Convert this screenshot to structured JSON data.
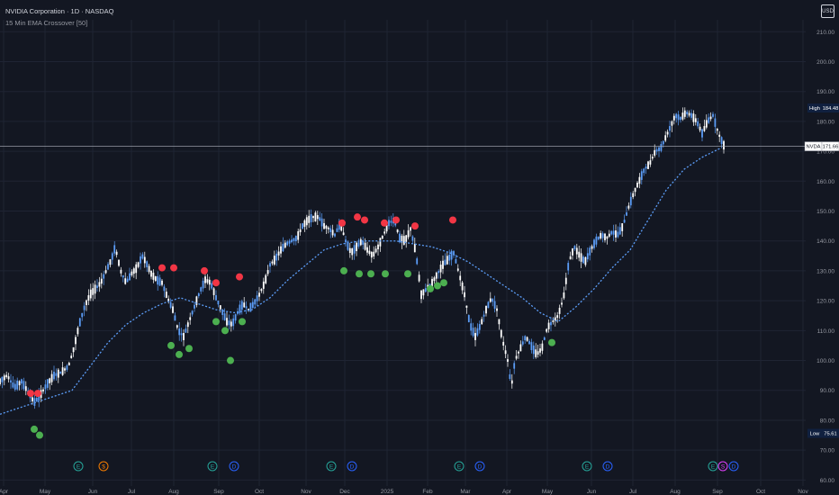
{
  "header": {
    "title": "NVIDIA Corporation · 1D · NASDAQ",
    "indicator": "15 Min EMA Crossover [50]",
    "currency": "USD"
  },
  "chart_data": {
    "type": "candlestick",
    "ylim": [
      58,
      214
    ],
    "y_ticks": [
      60,
      70,
      80,
      90,
      100,
      110,
      120,
      130,
      140,
      150,
      160,
      170,
      180,
      190,
      200,
      210
    ],
    "x_ticks": [
      "Apr",
      "May",
      "Jun",
      "Jul",
      "Aug",
      "Sep",
      "Oct",
      "Nov",
      "Dec",
      "2025",
      "Feb",
      "Mar",
      "Apr",
      "May",
      "Jun",
      "Jul",
      "Aug",
      "Sep",
      "Oct",
      "Nov"
    ],
    "price_series": [
      [
        0,
        93
      ],
      [
        8,
        95
      ],
      [
        16,
        91
      ],
      [
        24,
        93
      ],
      [
        32,
        89
      ],
      [
        38,
        86
      ],
      [
        44,
        88
      ],
      [
        52,
        92
      ],
      [
        60,
        95
      ],
      [
        68,
        96
      ],
      [
        76,
        98
      ],
      [
        82,
        104
      ],
      [
        88,
        112
      ],
      [
        94,
        118
      ],
      [
        100,
        122
      ],
      [
        106,
        124
      ],
      [
        112,
        126
      ],
      [
        118,
        130
      ],
      [
        124,
        134
      ],
      [
        128,
        138
      ],
      [
        134,
        130
      ],
      [
        140,
        126
      ],
      [
        146,
        129
      ],
      [
        152,
        131
      ],
      [
        158,
        135
      ],
      [
        162,
        133
      ],
      [
        168,
        129
      ],
      [
        174,
        127
      ],
      [
        180,
        126
      ],
      [
        186,
        121
      ],
      [
        192,
        117
      ],
      [
        198,
        110
      ],
      [
        204,
        108
      ],
      [
        210,
        113
      ],
      [
        216,
        118
      ],
      [
        222,
        123
      ],
      [
        228,
        127
      ],
      [
        234,
        126
      ],
      [
        240,
        121
      ],
      [
        246,
        117
      ],
      [
        252,
        113
      ],
      [
        258,
        112
      ],
      [
        264,
        116
      ],
      [
        270,
        119
      ],
      [
        276,
        117
      ],
      [
        282,
        119
      ],
      [
        288,
        122
      ],
      [
        294,
        126
      ],
      [
        300,
        132
      ],
      [
        306,
        134
      ],
      [
        312,
        137
      ],
      [
        318,
        139
      ],
      [
        324,
        140
      ],
      [
        330,
        141
      ],
      [
        336,
        145
      ],
      [
        342,
        147
      ],
      [
        348,
        148
      ],
      [
        354,
        148
      ],
      [
        360,
        145
      ],
      [
        366,
        144
      ],
      [
        372,
        142
      ],
      [
        378,
        146
      ],
      [
        384,
        140
      ],
      [
        390,
        136
      ],
      [
        396,
        138
      ],
      [
        402,
        140
      ],
      [
        408,
        137
      ],
      [
        414,
        135
      ],
      [
        420,
        138
      ],
      [
        426,
        142
      ],
      [
        432,
        146
      ],
      [
        438,
        147
      ],
      [
        444,
        141
      ],
      [
        450,
        140
      ],
      [
        456,
        144
      ],
      [
        462,
        136
      ],
      [
        468,
        122
      ],
      [
        474,
        124
      ],
      [
        480,
        126
      ],
      [
        486,
        129
      ],
      [
        492,
        132
      ],
      [
        498,
        134
      ],
      [
        504,
        136
      ],
      [
        510,
        129
      ],
      [
        516,
        122
      ],
      [
        522,
        112
      ],
      [
        528,
        108
      ],
      [
        534,
        112
      ],
      [
        540,
        117
      ],
      [
        546,
        121
      ],
      [
        552,
        117
      ],
      [
        558,
        107
      ],
      [
        564,
        100
      ],
      [
        568,
        91
      ],
      [
        572,
        100
      ],
      [
        578,
        104
      ],
      [
        584,
        108
      ],
      [
        590,
        105
      ],
      [
        596,
        102
      ],
      [
        602,
        104
      ],
      [
        608,
        111
      ],
      [
        614,
        113
      ],
      [
        620,
        115
      ],
      [
        626,
        121
      ],
      [
        632,
        133
      ],
      [
        638,
        138
      ],
      [
        644,
        135
      ],
      [
        650,
        133
      ],
      [
        656,
        137
      ],
      [
        662,
        140
      ],
      [
        668,
        142
      ],
      [
        674,
        141
      ],
      [
        680,
        143
      ],
      [
        686,
        142
      ],
      [
        692,
        145
      ],
      [
        698,
        151
      ],
      [
        704,
        156
      ],
      [
        710,
        160
      ],
      [
        716,
        164
      ],
      [
        722,
        166
      ],
      [
        728,
        170
      ],
      [
        734,
        171
      ],
      [
        740,
        175
      ],
      [
        746,
        179
      ],
      [
        750,
        182
      ],
      [
        756,
        181
      ],
      [
        762,
        183
      ],
      [
        768,
        182
      ],
      [
        774,
        180
      ],
      [
        780,
        176
      ],
      [
        786,
        180
      ],
      [
        792,
        182
      ],
      [
        798,
        176
      ],
      [
        804,
        172
      ]
    ],
    "ema_series": [
      [
        0,
        82
      ],
      [
        20,
        84
      ],
      [
        40,
        86
      ],
      [
        60,
        88
      ],
      [
        80,
        90
      ],
      [
        100,
        98
      ],
      [
        120,
        106
      ],
      [
        140,
        112
      ],
      [
        160,
        116
      ],
      [
        180,
        119
      ],
      [
        200,
        121
      ],
      [
        220,
        119
      ],
      [
        240,
        117
      ],
      [
        260,
        116
      ],
      [
        280,
        117
      ],
      [
        300,
        121
      ],
      [
        320,
        127
      ],
      [
        340,
        132
      ],
      [
        360,
        137
      ],
      [
        380,
        139
      ],
      [
        400,
        140
      ],
      [
        420,
        140
      ],
      [
        440,
        140
      ],
      [
        460,
        139
      ],
      [
        480,
        138
      ],
      [
        500,
        136
      ],
      [
        520,
        133
      ],
      [
        540,
        129
      ],
      [
        560,
        125
      ],
      [
        580,
        121
      ],
      [
        600,
        116
      ],
      [
        620,
        113
      ],
      [
        640,
        118
      ],
      [
        660,
        124
      ],
      [
        680,
        131
      ],
      [
        700,
        137
      ],
      [
        720,
        147
      ],
      [
        740,
        157
      ],
      [
        760,
        164
      ],
      [
        780,
        168
      ],
      [
        800,
        171
      ]
    ],
    "sell_markers": [
      [
        34,
        89
      ],
      [
        42,
        89
      ],
      [
        180,
        131
      ],
      [
        193,
        131
      ],
      [
        227,
        130
      ],
      [
        240,
        126
      ],
      [
        266,
        128
      ],
      [
        380,
        146
      ],
      [
        397,
        148
      ],
      [
        405,
        147
      ],
      [
        427,
        146
      ],
      [
        440,
        147
      ],
      [
        461,
        145
      ],
      [
        503,
        147
      ]
    ],
    "buy_markers": [
      [
        38,
        77
      ],
      [
        44,
        75
      ],
      [
        190,
        105
      ],
      [
        199,
        102
      ],
      [
        210,
        104
      ],
      [
        240,
        113
      ],
      [
        250,
        110
      ],
      [
        256,
        100
      ],
      [
        269,
        113
      ],
      [
        382,
        130
      ],
      [
        399,
        129
      ],
      [
        412,
        129
      ],
      [
        428,
        129
      ],
      [
        453,
        129
      ],
      [
        478,
        124
      ],
      [
        486,
        125
      ],
      [
        493,
        126
      ],
      [
        613,
        106
      ]
    ],
    "high": {
      "label": "High",
      "value": "184.48"
    },
    "low": {
      "label": "Low",
      "value": "75.61"
    },
    "last": {
      "label": "NVDA",
      "value": "171.66"
    },
    "event_markers": [
      {
        "icon": "E",
        "color": "#26a69a"
      },
      {
        "icon": "$",
        "color": "#f57c00"
      },
      {
        "icon": "E",
        "color": "#26a69a"
      },
      {
        "icon": "D",
        "color": "#2962ff"
      },
      {
        "icon": "E",
        "color": "#26a69a"
      },
      {
        "icon": "D",
        "color": "#2962ff"
      },
      {
        "icon": "E",
        "color": "#26a69a"
      },
      {
        "icon": "D",
        "color": "#2962ff"
      },
      {
        "icon": "E",
        "color": "#26a69a"
      },
      {
        "icon": "D",
        "color": "#2962ff"
      },
      {
        "icon": "E",
        "color": "#26a69a"
      },
      {
        "icon": "S",
        "color": "#e040fb"
      },
      {
        "icon": "D",
        "color": "#2962ff"
      }
    ],
    "colors": {
      "background": "#131722",
      "grid": "#1f2433",
      "candle_up": "#ffffff",
      "candle_down": "#5b9cf6",
      "ema": "#5b9cf6",
      "sell": "#f23645",
      "buy": "#4caf50",
      "label_bg": "#10203f"
    }
  }
}
